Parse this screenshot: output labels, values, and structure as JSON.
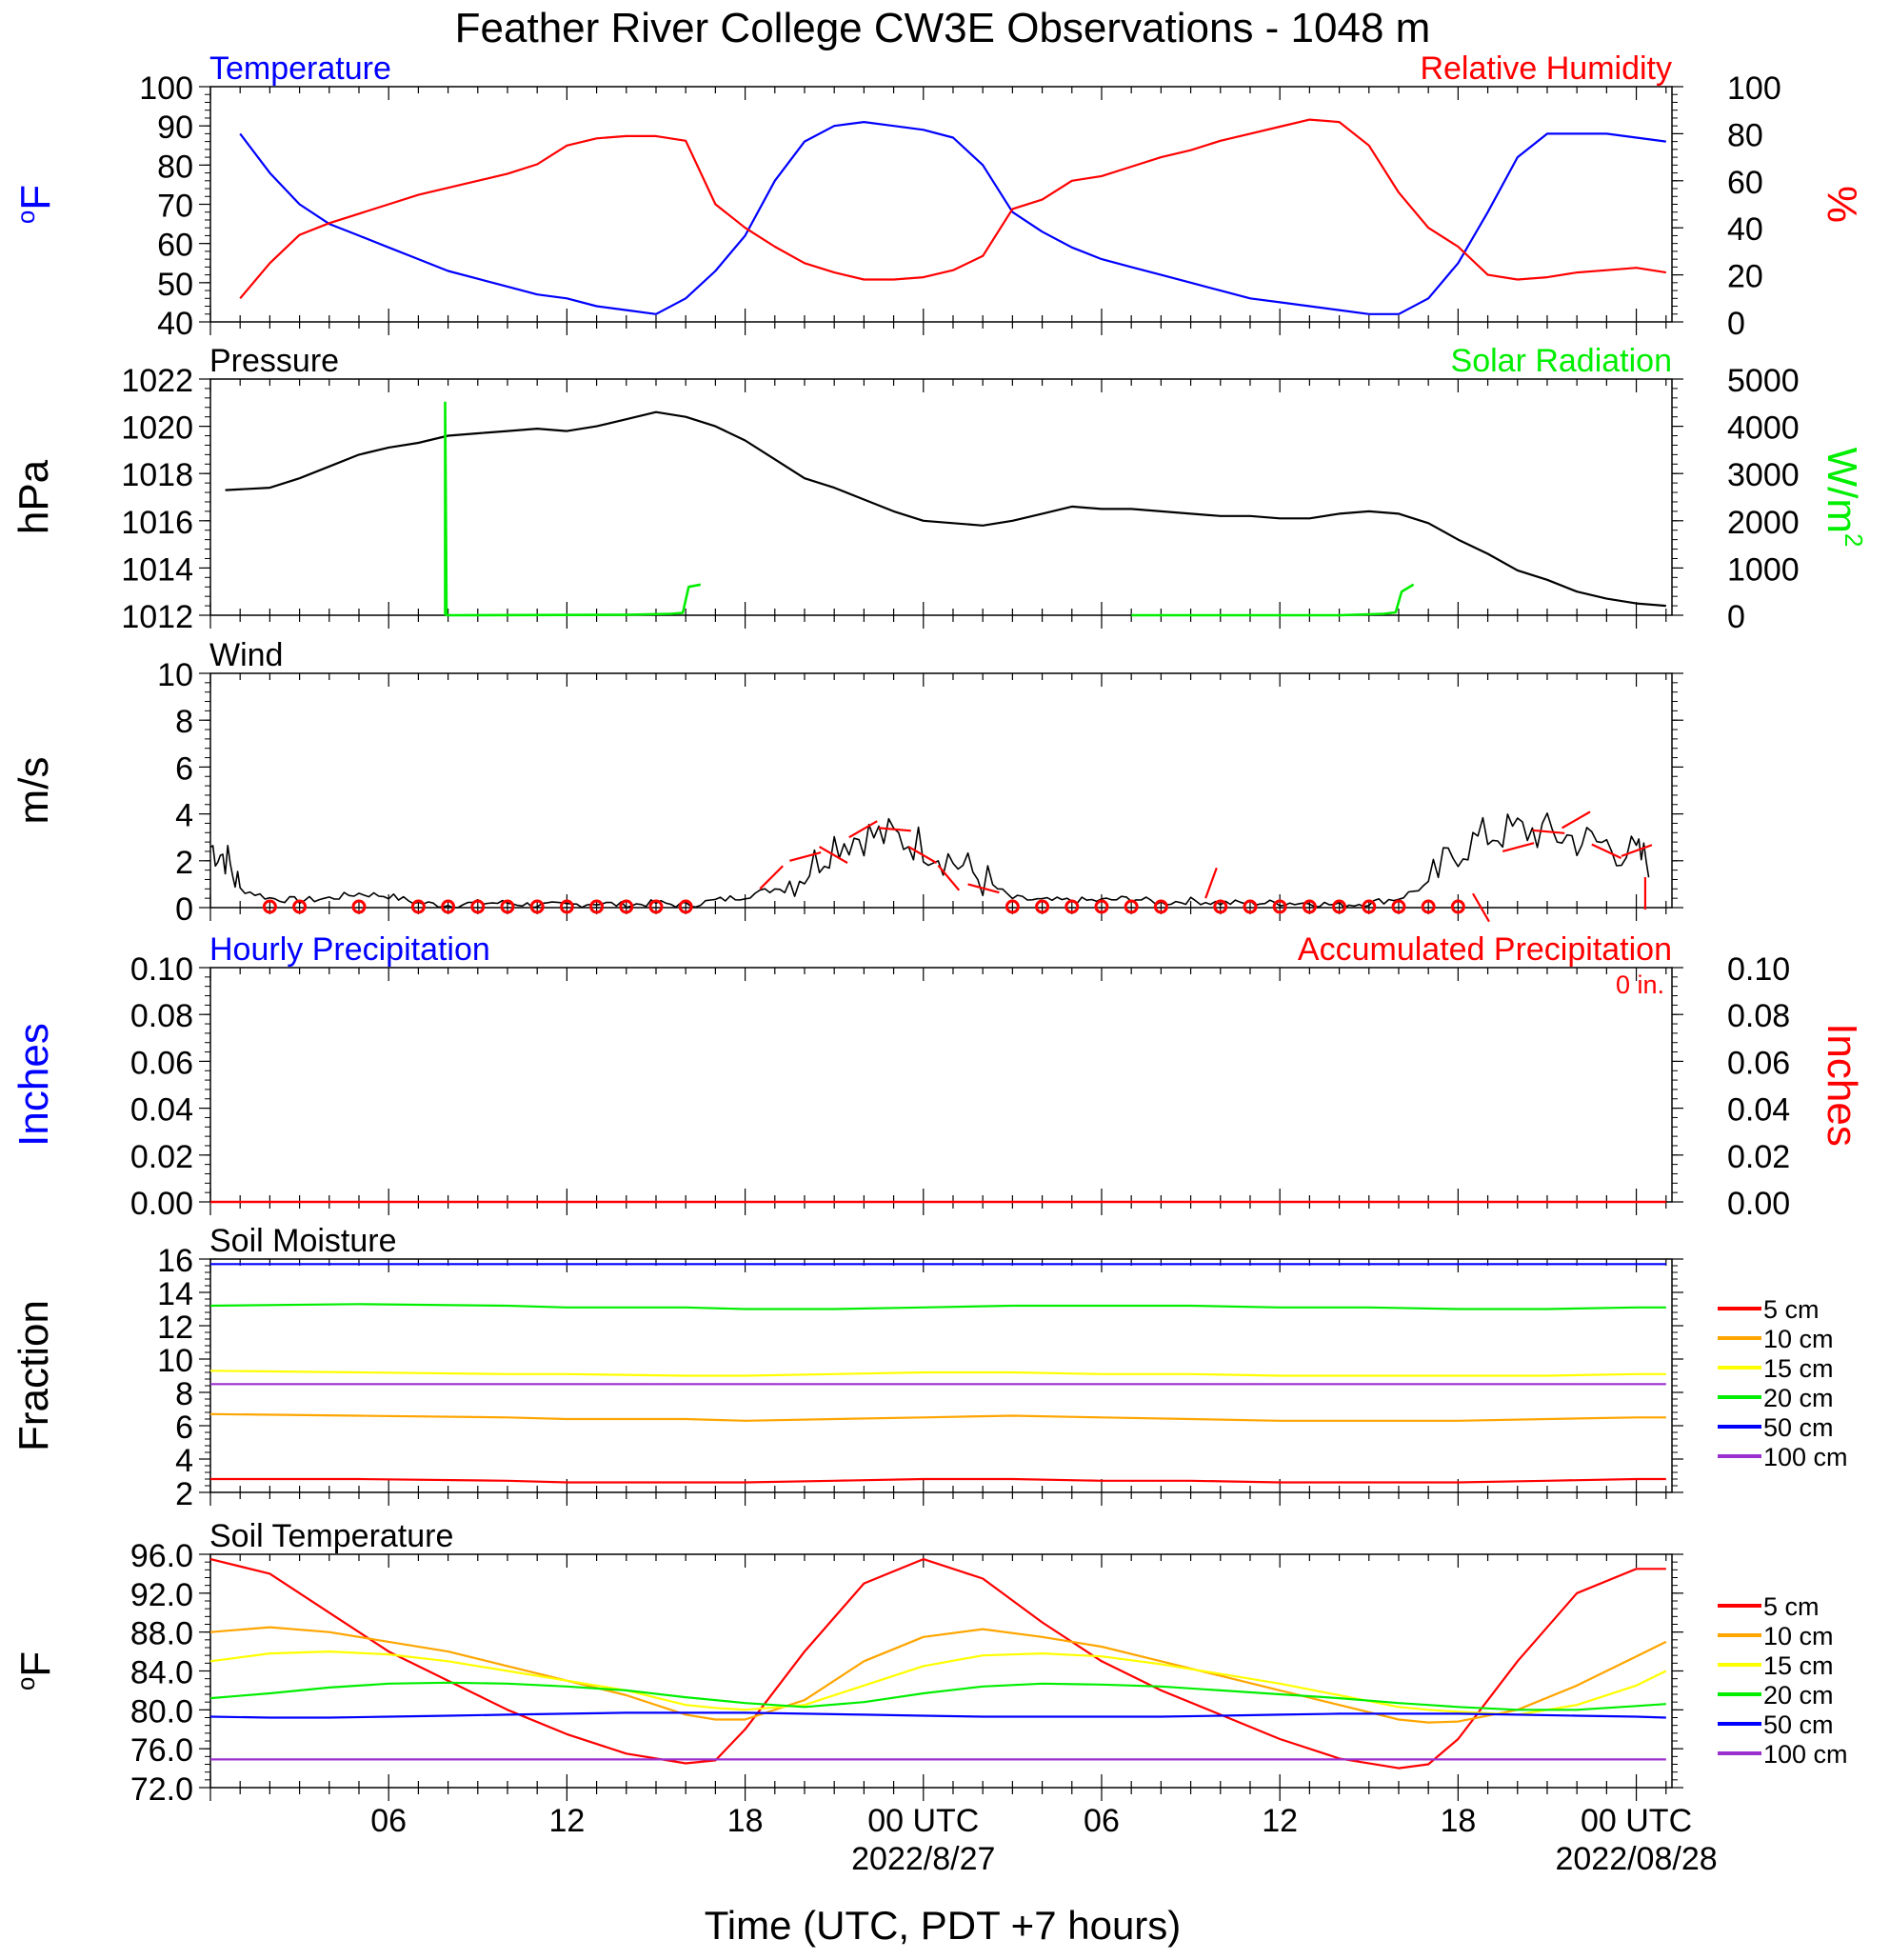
{
  "title": "Feather River College CW3E Observations - 1048 m",
  "xlabel": "Time (UTC, PDT +7 hours)",
  "x_ticks": [
    {
      "hour": 6,
      "label": "06",
      "sub": ""
    },
    {
      "hour": 12,
      "label": "12",
      "sub": ""
    },
    {
      "hour": 18,
      "label": "18",
      "sub": ""
    },
    {
      "hour": 24,
      "label": "00 UTC",
      "sub": "2022/8/27"
    },
    {
      "hour": 30,
      "label": "06",
      "sub": ""
    },
    {
      "hour": 36,
      "label": "12",
      "sub": ""
    },
    {
      "hour": 42,
      "label": "18",
      "sub": ""
    },
    {
      "hour": 48,
      "label": "00 UTC",
      "sub": "2022/08/28"
    }
  ],
  "colors": {
    "temperature": "#0000ff",
    "humidity": "#ff0000",
    "pressure": "#000000",
    "solar": "#00ee00",
    "wind": "#000000",
    "barbs": "#ff0000",
    "precip": "#ff0000"
  },
  "chart_data": [
    {
      "id": "temp_rh",
      "type": "line",
      "left_title": "Temperature",
      "right_title": "Relative Humidity",
      "ylabel_left": "oF",
      "ylabel_right": "%",
      "ylim_left": [
        40,
        100
      ],
      "yticks_left": [
        "40",
        "50",
        "60",
        "70",
        "80",
        "90",
        "100"
      ],
      "ylim_right": [
        0,
        100
      ],
      "yticks_right": [
        "0",
        "20",
        "40",
        "60",
        "80",
        "100"
      ],
      "x": [
        1,
        2,
        3,
        4,
        5,
        6,
        7,
        8,
        9,
        10,
        11,
        12,
        13,
        14,
        15,
        16,
        17,
        18,
        19,
        20,
        21,
        22,
        23,
        24,
        25,
        26,
        27,
        28,
        29,
        30,
        31,
        32,
        33,
        34,
        35,
        36,
        37,
        38,
        39,
        40,
        41,
        42,
        43,
        44,
        45,
        46,
        47,
        48,
        49
      ],
      "series": [
        {
          "name": "Temperature",
          "axis": "left",
          "color": "#0000ff",
          "values": [
            88,
            78,
            70,
            65,
            62,
            59,
            56,
            53,
            51,
            49,
            47,
            46,
            44,
            43,
            42,
            46,
            53,
            62,
            76,
            86,
            90,
            91,
            90,
            89,
            87,
            80,
            68,
            63,
            59,
            56,
            54,
            52,
            50,
            48,
            46,
            45,
            44,
            43,
            42,
            42,
            46,
            55,
            68,
            82,
            88,
            88,
            88,
            87,
            86
          ]
        },
        {
          "name": "Relative Humidity",
          "axis": "right",
          "color": "#ff0000",
          "values": [
            10,
            25,
            37,
            42,
            46,
            50,
            54,
            57,
            60,
            63,
            67,
            75,
            78,
            79,
            79,
            77,
            50,
            40,
            32,
            25,
            21,
            18,
            18,
            19,
            22,
            28,
            48,
            52,
            60,
            62,
            66,
            70,
            73,
            77,
            80,
            83,
            86,
            85,
            75,
            55,
            40,
            32,
            20,
            18,
            19,
            21,
            22,
            23,
            21
          ]
        }
      ]
    },
    {
      "id": "pressure_solar",
      "type": "line",
      "left_title": "Pressure",
      "right_title": "Solar Radiation",
      "ylabel_left": "hPa",
      "ylabel_right": "W/m2",
      "ylim_left": [
        1012,
        1022
      ],
      "yticks_left": [
        "1012",
        "1014",
        "1016",
        "1018",
        "1020",
        "1022"
      ],
      "ylim_right": [
        0,
        5000
      ],
      "yticks_right": [
        "0",
        "1000",
        "2000",
        "3000",
        "4000",
        "5000"
      ],
      "series": [
        {
          "name": "Pressure",
          "axis": "left",
          "color": "#000000",
          "x": [
            0.5,
            2,
            3,
            4,
            5,
            6,
            7,
            8,
            9,
            10,
            11,
            12,
            13,
            14,
            15,
            16,
            17,
            18,
            19,
            20,
            21,
            22,
            23,
            24,
            25,
            26,
            27,
            28,
            29,
            30,
            31,
            32,
            33,
            34,
            35,
            36,
            37,
            38,
            39,
            40,
            41,
            42,
            43,
            44,
            45,
            46,
            47,
            48,
            49
          ],
          "values": [
            1017.3,
            1017.4,
            1017.8,
            1018.3,
            1018.8,
            1019.1,
            1019.3,
            1019.6,
            1019.7,
            1019.8,
            1019.9,
            1019.8,
            1020.0,
            1020.3,
            1020.6,
            1020.4,
            1020.0,
            1019.4,
            1018.6,
            1017.8,
            1017.4,
            1016.9,
            1016.4,
            1016.0,
            1015.9,
            1015.8,
            1016.0,
            1016.3,
            1016.6,
            1016.5,
            1016.5,
            1016.4,
            1016.3,
            1016.2,
            1016.2,
            1016.1,
            1016.1,
            1016.3,
            1016.4,
            1016.3,
            1015.9,
            1015.2,
            1014.6,
            1013.9,
            1013.5,
            1013.0,
            1012.7,
            1012.5,
            1012.4
          ]
        },
        {
          "name": "Solar Radiation",
          "axis": "right",
          "color": "#00ee00",
          "x": [
            7.9,
            7.9,
            7.95,
            14,
            15.5,
            15.9,
            16.1,
            16.5,
            null,
            31,
            38,
            39.5,
            39.9,
            40.1,
            40.5
          ],
          "values": [
            0,
            4500,
            0,
            10,
            30,
            50,
            600,
            650,
            null,
            0,
            0,
            30,
            60,
            500,
            650
          ]
        }
      ]
    },
    {
      "id": "wind",
      "type": "line",
      "left_title": "Wind",
      "ylabel_left": "m/s",
      "ylim_left": [
        0,
        10
      ],
      "yticks_left": [
        "0",
        "2",
        "4",
        "6",
        "8",
        "10"
      ],
      "series": [
        {
          "name": "Wind",
          "color": "#000000",
          "x": [
            0,
            0.5,
            1,
            2,
            3,
            4,
            5,
            6,
            7,
            8,
            9,
            10,
            11,
            12,
            13,
            14,
            15,
            16,
            17,
            18,
            19,
            20,
            21,
            22,
            23,
            24,
            25,
            26,
            27,
            28,
            29,
            30,
            31,
            32,
            33,
            34,
            35,
            36,
            37,
            38,
            39,
            40,
            41,
            42,
            43,
            44,
            45,
            46,
            47,
            48,
            48.5
          ],
          "values": [
            2.6,
            2.2,
            0.8,
            0.4,
            0.3,
            0.4,
            0.6,
            0.5,
            0.2,
            0.1,
            0.2,
            0.2,
            0.1,
            0.1,
            0.2,
            0.1,
            0.2,
            0.1,
            0.3,
            0.5,
            0.8,
            1.5,
            2.8,
            3.1,
            3.0,
            2.7,
            2.0,
            1.2,
            0.4,
            0.3,
            0.3,
            0.3,
            0.4,
            0.2,
            0.3,
            0.2,
            0.2,
            0.2,
            0.2,
            0.1,
            0.2,
            0.4,
            1.0,
            2.5,
            3.1,
            3.3,
            3.2,
            2.9,
            2.7,
            2.2,
            2.0
          ]
        }
      ],
      "calm_circles_hours": [
        2,
        3,
        5,
        7,
        8,
        9,
        10,
        11,
        12,
        13,
        14,
        15,
        16,
        27,
        28,
        29,
        30,
        31,
        32,
        34,
        35,
        36,
        37,
        38,
        39,
        40,
        41,
        42
      ],
      "barbs": [
        {
          "hour": 18.5,
          "speed": 0.8,
          "angle": 45
        },
        {
          "hour": 19.5,
          "speed": 2.0,
          "angle": 75
        },
        {
          "hour": 20.5,
          "speed": 2.6,
          "angle": 120
        },
        {
          "hour": 21.5,
          "speed": 3.0,
          "angle": 60
        },
        {
          "hour": 22.5,
          "speed": 3.4,
          "angle": 95
        },
        {
          "hour": 23.5,
          "speed": 2.6,
          "angle": 120
        },
        {
          "hour": 24.5,
          "speed": 1.8,
          "angle": 140
        },
        {
          "hour": 25.5,
          "speed": 1.0,
          "angle": 105
        },
        {
          "hour": 33.5,
          "speed": 0.4,
          "angle": 20
        },
        {
          "hour": 42.5,
          "speed": 0.6,
          "angle": 150
        },
        {
          "hour": 43.5,
          "speed": 2.4,
          "angle": 75
        },
        {
          "hour": 44.5,
          "speed": 3.3,
          "angle": 95
        },
        {
          "hour": 45.5,
          "speed": 3.4,
          "angle": 60
        },
        {
          "hour": 46.5,
          "speed": 2.7,
          "angle": 115
        },
        {
          "hour": 47.5,
          "speed": 2.2,
          "angle": 70
        },
        {
          "hour": 48.3,
          "speed": 1.3,
          "angle": 180
        }
      ]
    },
    {
      "id": "precip",
      "type": "line",
      "left_title": "Hourly Precipitation",
      "right_title": "Accumulated Precipitation",
      "annotation": "0 in.",
      "ylabel_left": "Inches",
      "ylabel_right": "Inches",
      "ylim_left": [
        0,
        0.1
      ],
      "yticks_left": [
        "0.00",
        "0.02",
        "0.04",
        "0.06",
        "0.08",
        "0.10"
      ],
      "ylim_right": [
        0,
        0.1
      ],
      "yticks_right": [
        "0.00",
        "0.02",
        "0.04",
        "0.06",
        "0.08",
        "0.10"
      ],
      "series": [
        {
          "name": "Accumulated Precipitation",
          "color": "#ff0000",
          "x": [
            0,
            49
          ],
          "values": [
            0,
            0
          ]
        }
      ]
    },
    {
      "id": "soil_moisture",
      "type": "line",
      "left_title": "Soil Moisture",
      "ylabel_left": "Fraction",
      "ylim_left": [
        2,
        16
      ],
      "yticks_left": [
        "2",
        "4",
        "6",
        "8",
        "10",
        "12",
        "14",
        "16"
      ],
      "x": [
        0,
        5,
        10,
        12,
        16,
        18,
        21,
        24,
        27,
        30,
        33,
        36,
        39,
        42,
        45,
        48,
        49
      ],
      "series": [
        {
          "name": "5 cm",
          "color": "#ff0000",
          "values": [
            2.8,
            2.8,
            2.7,
            2.6,
            2.6,
            2.6,
            2.7,
            2.8,
            2.8,
            2.7,
            2.7,
            2.6,
            2.6,
            2.6,
            2.7,
            2.8,
            2.8
          ]
        },
        {
          "name": "10 cm",
          "color": "#ffa500",
          "values": [
            6.7,
            6.6,
            6.5,
            6.4,
            6.4,
            6.3,
            6.4,
            6.5,
            6.6,
            6.5,
            6.4,
            6.3,
            6.3,
            6.3,
            6.4,
            6.5,
            6.5
          ]
        },
        {
          "name": "15 cm",
          "color": "#ffff00",
          "values": [
            9.3,
            9.2,
            9.1,
            9.1,
            9.0,
            9.0,
            9.1,
            9.2,
            9.2,
            9.1,
            9.1,
            9.0,
            9.0,
            9.0,
            9.0,
            9.1,
            9.1
          ]
        },
        {
          "name": "20 cm",
          "color": "#00ee00",
          "values": [
            13.2,
            13.3,
            13.2,
            13.1,
            13.1,
            13.0,
            13.0,
            13.1,
            13.2,
            13.2,
            13.2,
            13.1,
            13.1,
            13.0,
            13.0,
            13.1,
            13.1
          ]
        },
        {
          "name": "50 cm",
          "color": "#0000ff",
          "values": [
            15.7,
            15.7,
            15.7,
            15.7,
            15.7,
            15.7,
            15.7,
            15.7,
            15.7,
            15.7,
            15.7,
            15.7,
            15.7,
            15.7,
            15.7,
            15.7,
            15.7
          ]
        },
        {
          "name": "100 cm",
          "color": "#9b30d0",
          "values": [
            8.5,
            8.5,
            8.5,
            8.5,
            8.5,
            8.5,
            8.5,
            8.5,
            8.5,
            8.5,
            8.5,
            8.5,
            8.5,
            8.5,
            8.5,
            8.5,
            8.5
          ]
        }
      ]
    },
    {
      "id": "soil_temperature",
      "type": "line",
      "left_title": "Soil Temperature",
      "ylabel_left": "oF",
      "ylim_left": [
        72,
        96
      ],
      "yticks_left": [
        "72.0",
        "76.0",
        "80.0",
        "84.0",
        "88.0",
        "92.0",
        "96.0"
      ],
      "x": [
        0,
        2,
        4,
        6,
        8,
        10,
        12,
        14,
        16,
        17,
        18,
        20,
        22,
        24,
        26,
        28,
        30,
        32,
        34,
        36,
        38,
        40,
        41,
        42,
        44,
        46,
        48,
        49
      ],
      "series": [
        {
          "name": "5 cm",
          "color": "#ff0000",
          "values": [
            95.5,
            94,
            90,
            86,
            83,
            80,
            77.5,
            75.5,
            74.5,
            74.8,
            78,
            86,
            93,
            95.5,
            93.5,
            89,
            85,
            82,
            79.5,
            77,
            75,
            74,
            74.4,
            77,
            85,
            92,
            94.5,
            94.5
          ]
        },
        {
          "name": "10 cm",
          "color": "#ffa500",
          "values": [
            88,
            88.5,
            88,
            87,
            86,
            84.5,
            83,
            81.5,
            79.5,
            79,
            79,
            81,
            85,
            87.5,
            88.3,
            87.5,
            86.5,
            85,
            83.5,
            82,
            80.5,
            79,
            78.7,
            78.8,
            80,
            82.5,
            85.5,
            87
          ]
        },
        {
          "name": "15 cm",
          "color": "#ffff00",
          "values": [
            85,
            85.8,
            86,
            85.7,
            85,
            84,
            83,
            82,
            80.5,
            80.2,
            80,
            80.5,
            82.5,
            84.5,
            85.6,
            85.8,
            85.5,
            84.7,
            83.7,
            82.7,
            81.5,
            80.3,
            80,
            79.8,
            79.5,
            80.5,
            82.5,
            84
          ]
        },
        {
          "name": "20 cm",
          "color": "#00ee00",
          "values": [
            81.2,
            81.7,
            82.3,
            82.7,
            82.8,
            82.7,
            82.4,
            82,
            81.3,
            81,
            80.7,
            80.3,
            80.8,
            81.7,
            82.4,
            82.7,
            82.6,
            82.4,
            82,
            81.6,
            81.2,
            80.7,
            80.5,
            80.3,
            80,
            80,
            80.4,
            80.6
          ]
        },
        {
          "name": "50 cm",
          "color": "#0000ff",
          "values": [
            79.3,
            79.2,
            79.2,
            79.3,
            79.4,
            79.5,
            79.6,
            79.7,
            79.7,
            79.7,
            79.7,
            79.6,
            79.5,
            79.4,
            79.3,
            79.3,
            79.3,
            79.3,
            79.4,
            79.5,
            79.6,
            79.6,
            79.6,
            79.6,
            79.5,
            79.4,
            79.3,
            79.2
          ]
        },
        {
          "name": "100 cm",
          "color": "#9b30d0",
          "values": [
            74.9,
            74.9,
            74.9,
            74.9,
            74.9,
            74.9,
            74.9,
            74.9,
            74.9,
            74.9,
            74.9,
            74.9,
            74.9,
            74.9,
            74.9,
            74.9,
            74.9,
            74.9,
            74.9,
            74.9,
            74.9,
            74.9,
            74.9,
            74.9,
            74.9,
            74.9,
            74.9,
            74.9
          ]
        }
      ]
    }
  ]
}
